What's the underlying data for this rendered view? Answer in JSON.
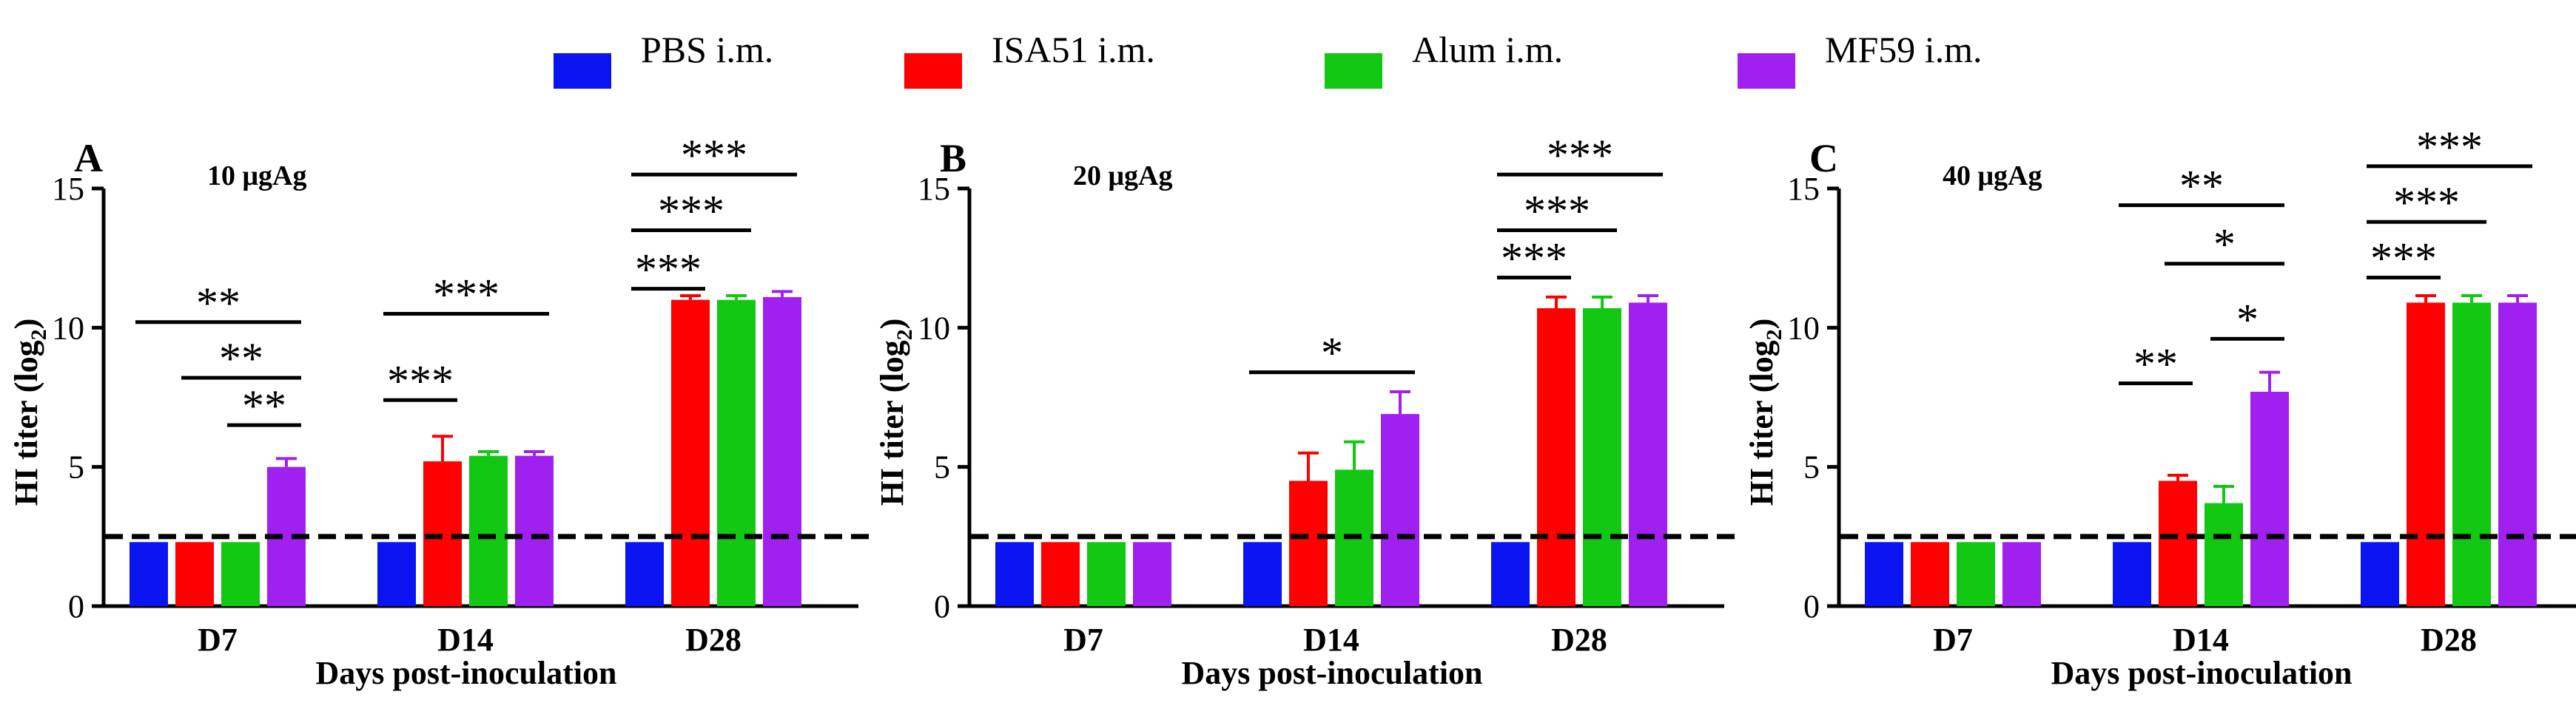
{
  "legend": {
    "items": [
      {
        "label": "PBS i.m.",
        "color": "#0a14f0"
      },
      {
        "label": "ISA51 i.m.",
        "color": "#ff0000"
      },
      {
        "label": "Alum i.m.",
        "color": "#12c812"
      },
      {
        "label": "MF59 i.m.",
        "color": "#a020f0"
      }
    ]
  },
  "chart_data": [
    {
      "type": "bar",
      "panel_letter": "A",
      "dose_label": "10 μgAg",
      "xlabel": "Days post-inoculation",
      "ylabel_main": "HI titer (log",
      "ylabel_sub": "2",
      "ylabel_close": ")",
      "ylim": [
        0,
        15
      ],
      "yticks": [
        0,
        5,
        10,
        15
      ],
      "categories": [
        "D7",
        "D14",
        "D28"
      ],
      "cutoff": 2.5,
      "series": [
        {
          "name": "PBS i.m.",
          "values": [
            2.3,
            2.3,
            2.3
          ],
          "errors": [
            0,
            0,
            0
          ]
        },
        {
          "name": "ISA51 i.m.",
          "values": [
            2.3,
            5.2,
            11.0
          ],
          "errors": [
            0,
            0.9,
            0.15
          ]
        },
        {
          "name": "Alum i.m.",
          "values": [
            2.3,
            5.4,
            11.0
          ],
          "errors": [
            0,
            0.15,
            0.15
          ]
        },
        {
          "name": "MF59 i.m.",
          "values": [
            5.0,
            5.4,
            11.1
          ],
          "errors": [
            0.3,
            0.15,
            0.2
          ]
        }
      ],
      "significance": [
        {
          "category": 0,
          "from": 0,
          "to": 3,
          "y": 10.2,
          "label": "**"
        },
        {
          "category": 0,
          "from": 1,
          "to": 3,
          "y": 8.2,
          "label": "**"
        },
        {
          "category": 0,
          "from": 2,
          "to": 3,
          "y": 6.5,
          "label": "**"
        },
        {
          "category": 1,
          "from": 0,
          "to": 3,
          "y": 10.5,
          "label": "***"
        },
        {
          "category": 1,
          "from": 0,
          "to": 1,
          "y": 7.4,
          "label": "***"
        },
        {
          "category": 2,
          "from": 0,
          "to": 3,
          "y": 15.5,
          "label": "***"
        },
        {
          "category": 2,
          "from": 0,
          "to": 2,
          "y": 13.5,
          "label": "***"
        },
        {
          "category": 2,
          "from": 0,
          "to": 1,
          "y": 11.4,
          "label": "***"
        }
      ]
    },
    {
      "type": "bar",
      "panel_letter": "B",
      "dose_label": "20 μgAg",
      "xlabel": "Days post-inoculation",
      "ylabel_main": "HI titer (log",
      "ylabel_sub": "2",
      "ylabel_close": ")",
      "ylim": [
        0,
        15
      ],
      "yticks": [
        0,
        5,
        10,
        15
      ],
      "categories": [
        "D7",
        "D14",
        "D28"
      ],
      "cutoff": 2.5,
      "series": [
        {
          "name": "PBS i.m.",
          "values": [
            2.3,
            2.3,
            2.3
          ],
          "errors": [
            0,
            0,
            0
          ]
        },
        {
          "name": "ISA51 i.m.",
          "values": [
            2.3,
            4.5,
            10.7
          ],
          "errors": [
            0,
            1.0,
            0.4
          ]
        },
        {
          "name": "Alum i.m.",
          "values": [
            2.3,
            4.9,
            10.7
          ],
          "errors": [
            0,
            1.0,
            0.4
          ]
        },
        {
          "name": "MF59 i.m.",
          "values": [
            2.3,
            6.9,
            10.9
          ],
          "errors": [
            0,
            0.8,
            0.25
          ]
        }
      ],
      "significance": [
        {
          "category": 1,
          "from": 0,
          "to": 3,
          "y": 8.4,
          "label": "*"
        },
        {
          "category": 2,
          "from": 0,
          "to": 3,
          "y": 15.5,
          "label": "***"
        },
        {
          "category": 2,
          "from": 0,
          "to": 2,
          "y": 13.5,
          "label": "***"
        },
        {
          "category": 2,
          "from": 0,
          "to": 1,
          "y": 11.8,
          "label": "***"
        }
      ]
    },
    {
      "type": "bar",
      "panel_letter": "C",
      "dose_label": "40 μgAg",
      "xlabel": "Days post-inoculation",
      "ylabel_main": "HI titer (log",
      "ylabel_sub": "2",
      "ylabel_close": ")",
      "ylim": [
        0,
        15
      ],
      "yticks": [
        0,
        5,
        10,
        15
      ],
      "categories": [
        "D7",
        "D14",
        "D28"
      ],
      "cutoff": 2.5,
      "series": [
        {
          "name": "PBS i.m.",
          "values": [
            2.3,
            2.3,
            2.3
          ],
          "errors": [
            0,
            0,
            0
          ]
        },
        {
          "name": "ISA51 i.m.",
          "values": [
            2.3,
            4.5,
            10.9
          ],
          "errors": [
            0,
            0.2,
            0.25
          ]
        },
        {
          "name": "Alum i.m.",
          "values": [
            2.3,
            3.7,
            10.9
          ],
          "errors": [
            0,
            0.6,
            0.25
          ]
        },
        {
          "name": "MF59 i.m.",
          "values": [
            2.3,
            7.7,
            10.9
          ],
          "errors": [
            0,
            0.7,
            0.25
          ]
        }
      ],
      "significance": [
        {
          "category": 1,
          "from": 0,
          "to": 3,
          "y": 14.4,
          "label": "**"
        },
        {
          "category": 1,
          "from": 1,
          "to": 3,
          "y": 12.3,
          "label": "*"
        },
        {
          "category": 1,
          "from": 2,
          "to": 3,
          "y": 9.6,
          "label": "*"
        },
        {
          "category": 1,
          "from": 0,
          "to": 1,
          "y": 8.0,
          "label": "**"
        },
        {
          "category": 2,
          "from": 0,
          "to": 3,
          "y": 15.8,
          "label": "***"
        },
        {
          "category": 2,
          "from": 0,
          "to": 2,
          "y": 13.8,
          "label": "***"
        },
        {
          "category": 2,
          "from": 0,
          "to": 1,
          "y": 11.8,
          "label": "***"
        }
      ]
    }
  ]
}
